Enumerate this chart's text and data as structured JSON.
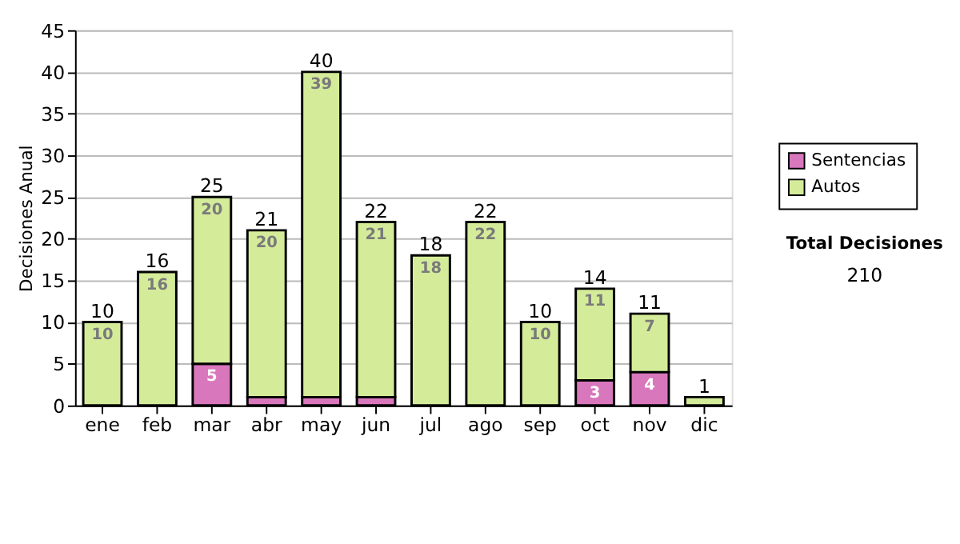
{
  "chart_data": {
    "type": "bar",
    "stacked": true,
    "ylabel": "Decisiones Anual",
    "categories": [
      "ene",
      "feb",
      "mar",
      "abr",
      "may",
      "jun",
      "jul",
      "ago",
      "sep",
      "oct",
      "nov",
      "dic"
    ],
    "series": [
      {
        "name": "Sentencias",
        "color": "#d977bd",
        "values": [
          0,
          0,
          5,
          1,
          1,
          1,
          0,
          0,
          0,
          3,
          4,
          0
        ],
        "value_labels": [
          null,
          null,
          "5",
          null,
          null,
          null,
          null,
          null,
          null,
          "3",
          "4",
          null
        ]
      },
      {
        "name": "Autos",
        "color": "#d4ec9a",
        "values": [
          10,
          16,
          20,
          20,
          39,
          21,
          18,
          22,
          10,
          11,
          7,
          1
        ],
        "value_labels": [
          "10",
          "16",
          "20",
          "20",
          "39",
          "21",
          "18",
          "22",
          "10",
          "11",
          "7",
          null
        ]
      }
    ],
    "totals": [
      "10",
      "16",
      "25",
      "21",
      "40",
      "22",
      "18",
      "22",
      "10",
      "14",
      "11",
      "1"
    ],
    "ylim": [
      0,
      45
    ],
    "yticks": [
      0,
      5,
      10,
      15,
      20,
      25,
      30,
      35,
      40,
      45
    ],
    "grid": "y",
    "legend": "right",
    "annotations": [
      "Total Decisiones",
      "210"
    ]
  }
}
